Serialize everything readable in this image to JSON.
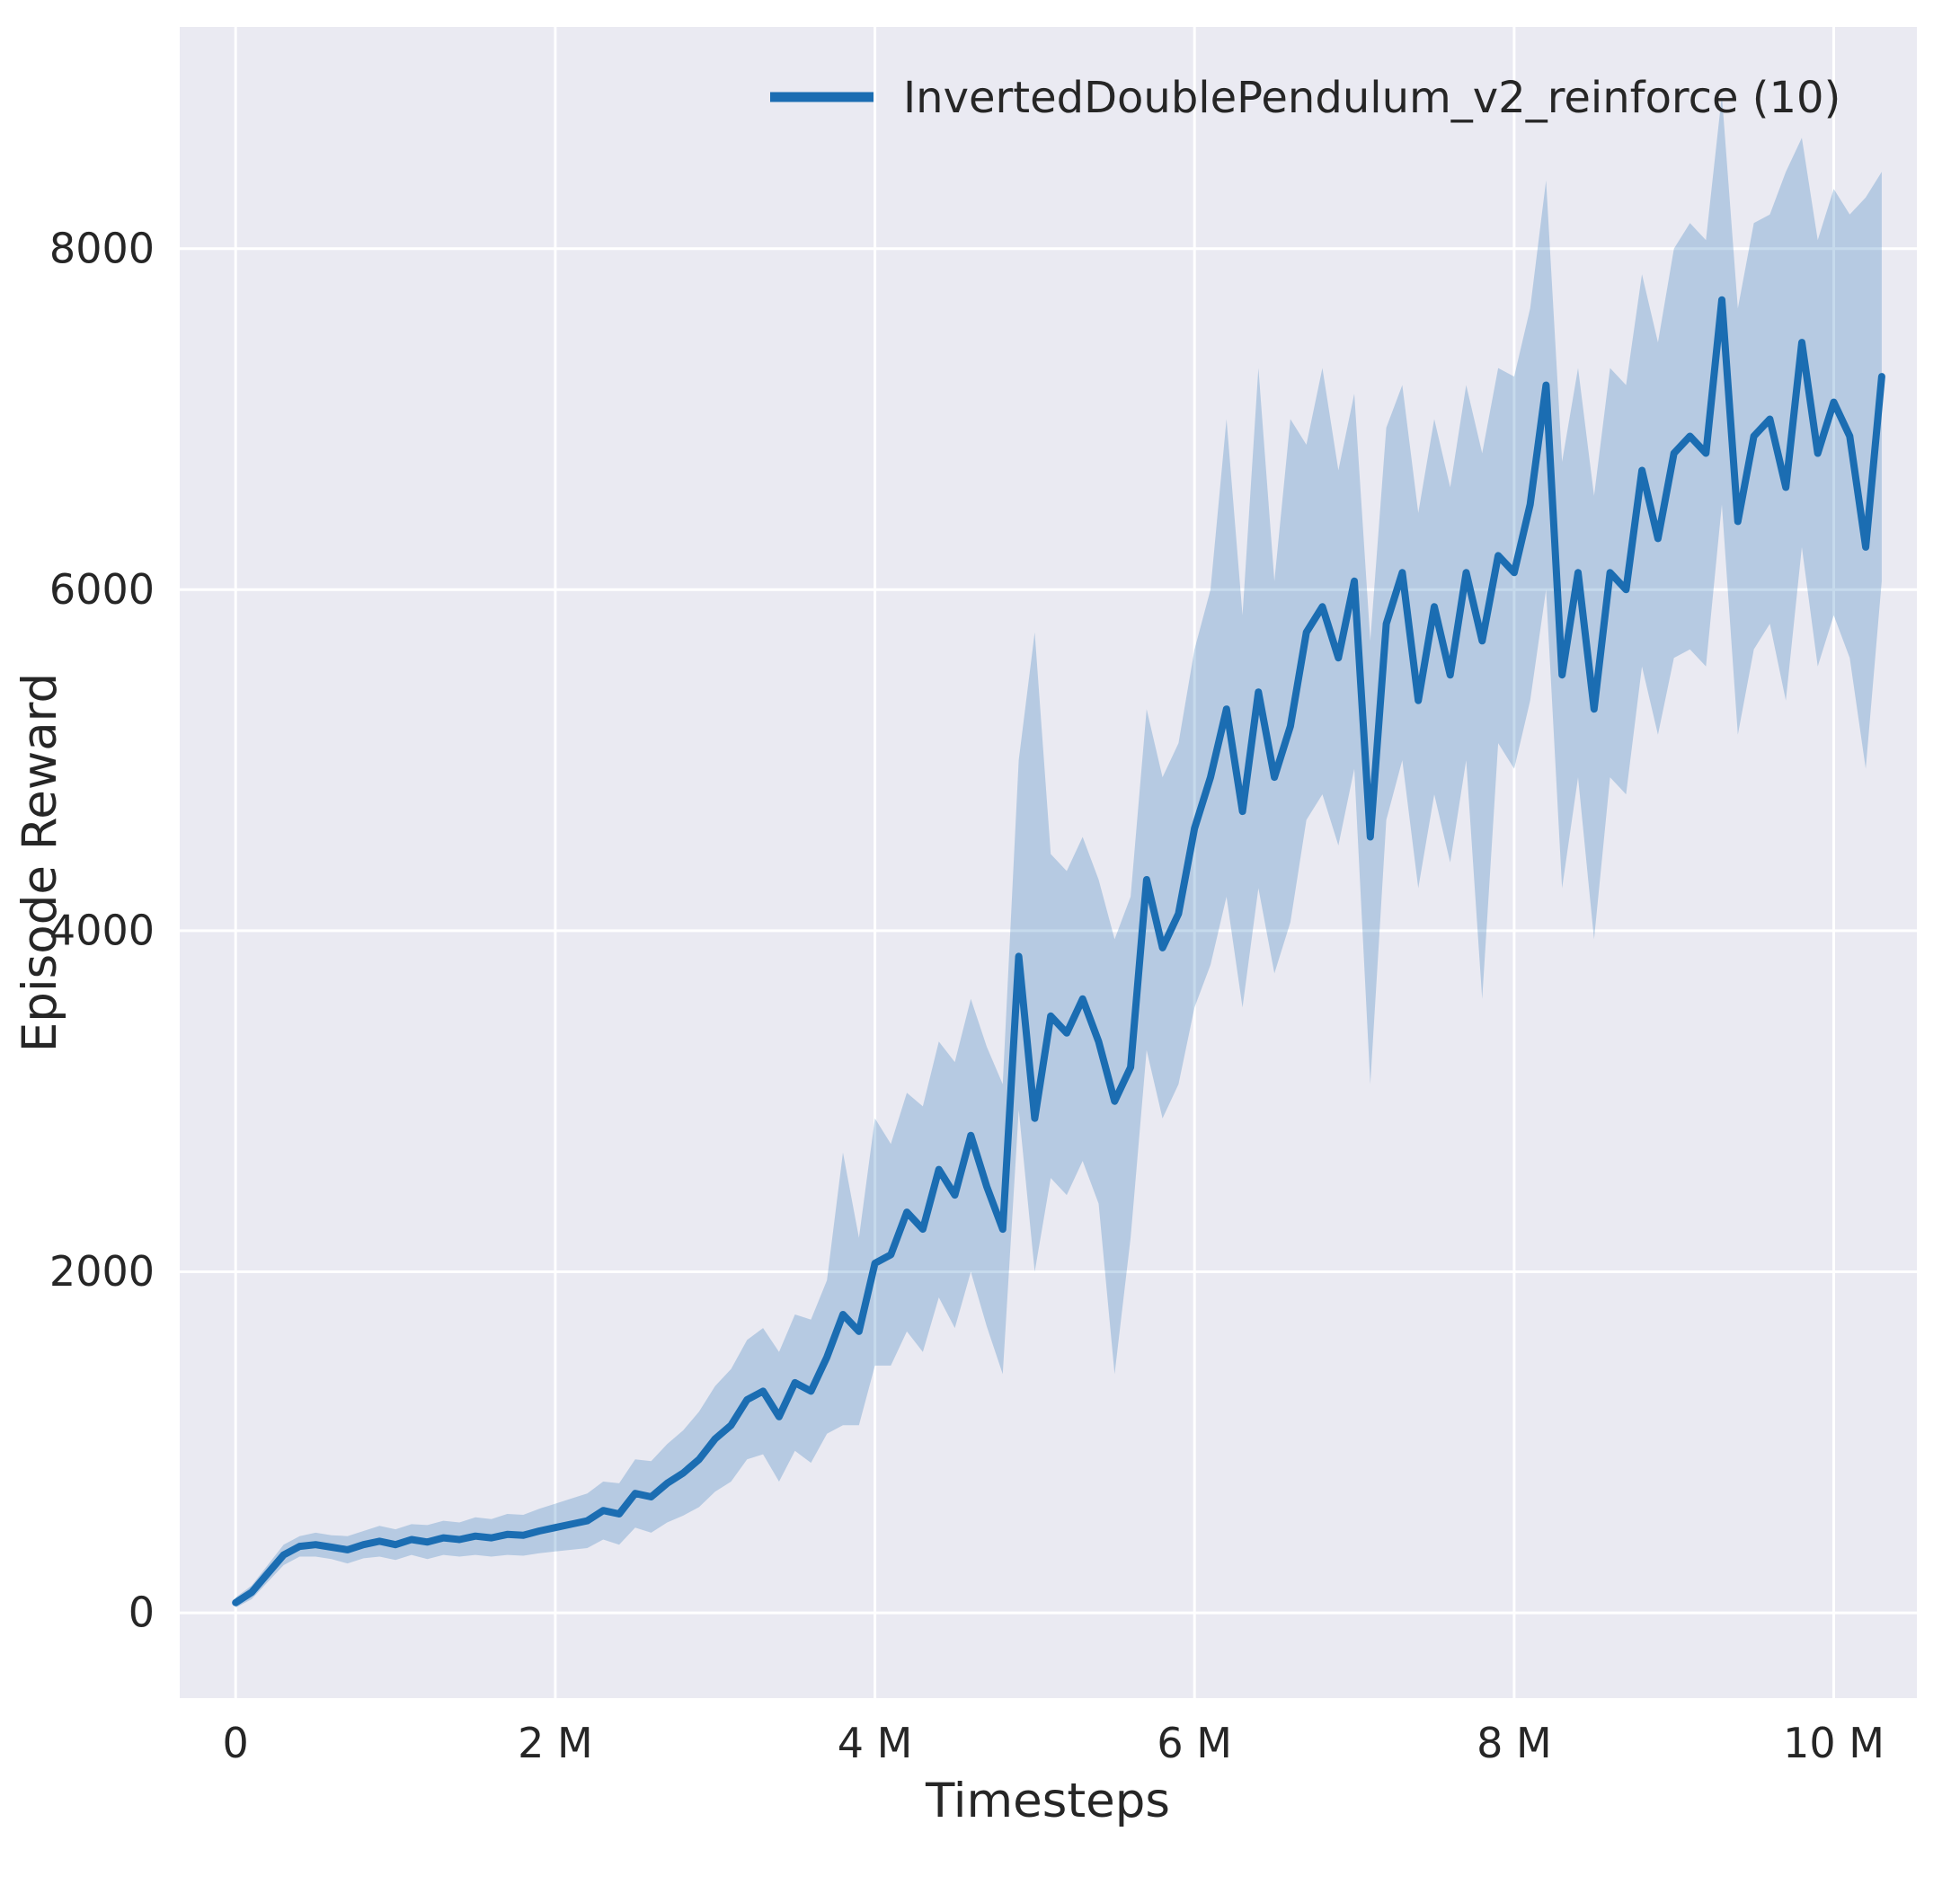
{
  "figure": {
    "background": "#ffffff",
    "plot_background": "#eaeaf2",
    "grid_color": "#ffffff",
    "text_color": "#262626"
  },
  "chart_data": {
    "type": "line",
    "title": "",
    "xlabel": "Timesteps",
    "ylabel": "Episode Reward",
    "x_unit": "millions of timesteps",
    "grid": true,
    "legend": {
      "position": "upper center",
      "frame": false
    },
    "xlim": [
      -0.35,
      10.52
    ],
    "ylim": [
      -500,
      9300
    ],
    "x_ticks": {
      "values": [
        0,
        2,
        4,
        6,
        8,
        10
      ],
      "labels": [
        "0",
        "2 M",
        "4 M",
        "6 M",
        "8 M",
        "10 M"
      ]
    },
    "y_ticks": {
      "values": [
        0,
        2000,
        4000,
        6000,
        8000
      ],
      "labels": [
        "0",
        "2000",
        "4000",
        "6000",
        "8000"
      ]
    },
    "series": [
      {
        "name": "InvertedDoublePendulum_v2_reinforce (10)",
        "color": "#1b6db2",
        "band_color": "#1b6db2",
        "band_opacity": 0.25,
        "x": [
          0.0,
          0.1,
          0.2,
          0.3,
          0.4,
          0.5,
          0.6,
          0.7,
          0.8,
          0.9,
          1.0,
          1.1,
          1.2,
          1.3,
          1.4,
          1.5,
          1.6,
          1.7,
          1.8,
          1.9,
          2.0,
          2.1,
          2.2,
          2.3,
          2.4,
          2.5,
          2.6,
          2.7,
          2.8,
          2.9,
          3.0,
          3.1,
          3.2,
          3.3,
          3.4,
          3.5,
          3.6,
          3.7,
          3.8,
          3.9,
          4.0,
          4.1,
          4.2,
          4.3,
          4.4,
          4.5,
          4.6,
          4.7,
          4.8,
          4.9,
          5.0,
          5.1,
          5.2,
          5.3,
          5.4,
          5.5,
          5.6,
          5.7,
          5.8,
          5.9,
          6.0,
          6.1,
          6.2,
          6.3,
          6.4,
          6.5,
          6.6,
          6.7,
          6.8,
          6.9,
          7.0,
          7.1,
          7.2,
          7.3,
          7.4,
          7.5,
          7.6,
          7.7,
          7.8,
          7.9,
          8.0,
          8.1,
          8.2,
          8.3,
          8.4,
          8.5,
          8.6,
          8.7,
          8.8,
          8.9,
          9.0,
          9.1,
          9.2,
          9.3,
          9.4,
          9.5,
          9.6,
          9.7,
          9.8,
          9.9,
          10.0,
          10.1,
          10.2,
          10.3
        ],
        "mean": [
          60,
          120,
          230,
          340,
          390,
          400,
          385,
          370,
          400,
          420,
          400,
          430,
          415,
          440,
          430,
          450,
          440,
          460,
          455,
          480,
          500,
          520,
          540,
          600,
          580,
          700,
          680,
          760,
          820,
          900,
          1020,
          1100,
          1250,
          1300,
          1150,
          1350,
          1300,
          1500,
          1750,
          1650,
          2050,
          2100,
          2350,
          2250,
          2600,
          2450,
          2800,
          2500,
          2250,
          3850,
          2900,
          3500,
          3400,
          3600,
          3350,
          3000,
          3200,
          4300,
          3900,
          4100,
          4600,
          4900,
          5300,
          4700,
          5400,
          4900,
          5200,
          5750,
          5900,
          5600,
          6050,
          4550,
          5800,
          6100,
          5350,
          5900,
          5500,
          6100,
          5700,
          6200,
          6100,
          6500,
          7200,
          5500,
          6100,
          5300,
          6100,
          6000,
          6700,
          6300,
          6800,
          6900,
          6800,
          7700,
          6400,
          6900,
          7000,
          6600,
          7450,
          6800,
          7100,
          6900,
          6250,
          7250
        ],
        "band_low": [
          30,
          80,
          180,
          280,
          330,
          330,
          315,
          290,
          320,
          330,
          310,
          340,
          315,
          340,
          330,
          340,
          330,
          340,
          335,
          350,
          360,
          370,
          380,
          430,
          400,
          500,
          470,
          530,
          570,
          620,
          710,
          770,
          900,
          930,
          770,
          950,
          880,
          1050,
          1100,
          1100,
          1450,
          1450,
          1650,
          1530,
          1850,
          1670,
          2000,
          1680,
          1400,
          2950,
          2000,
          2550,
          2450,
          2650,
          2400,
          1400,
          2200,
          3300,
          2900,
          3100,
          3550,
          3800,
          4200,
          3550,
          4250,
          3750,
          4050,
          4650,
          4800,
          4500,
          4950,
          3100,
          4650,
          5000,
          4250,
          4800,
          4400,
          5000,
          3600,
          5100,
          4950,
          5350,
          6000,
          4250,
          4900,
          3950,
          4900,
          4800,
          5550,
          5150,
          5600,
          5650,
          5550,
          6500,
          5150,
          5650,
          5800,
          5350,
          6250,
          5550,
          5850,
          5600,
          4950,
          6050
        ],
        "band_high": [
          90,
          160,
          280,
          400,
          450,
          470,
          455,
          450,
          480,
          510,
          490,
          520,
          515,
          540,
          530,
          560,
          550,
          580,
          575,
          610,
          640,
          670,
          700,
          770,
          760,
          900,
          890,
          990,
          1070,
          1180,
          1330,
          1430,
          1600,
          1670,
          1530,
          1750,
          1720,
          1950,
          2700,
          2200,
          2900,
          2750,
          3050,
          2970,
          3350,
          3230,
          3600,
          3320,
          3100,
          5000,
          5750,
          4450,
          4350,
          4550,
          4300,
          3950,
          4200,
          5300,
          4900,
          5100,
          5650,
          6000,
          7000,
          5850,
          7300,
          6050,
          7000,
          6850,
          7300,
          6700,
          7150,
          5700,
          6950,
          7200,
          6450,
          7000,
          6600,
          7200,
          6800,
          7300,
          7250,
          7650,
          8400,
          6750,
          7300,
          6550,
          7300,
          7200,
          7850,
          7450,
          8000,
          8150,
          8050,
          8900,
          7650,
          8150,
          8200,
          8450,
          8650,
          8050,
          8350,
          8200,
          8300,
          8450
        ]
      }
    ]
  }
}
